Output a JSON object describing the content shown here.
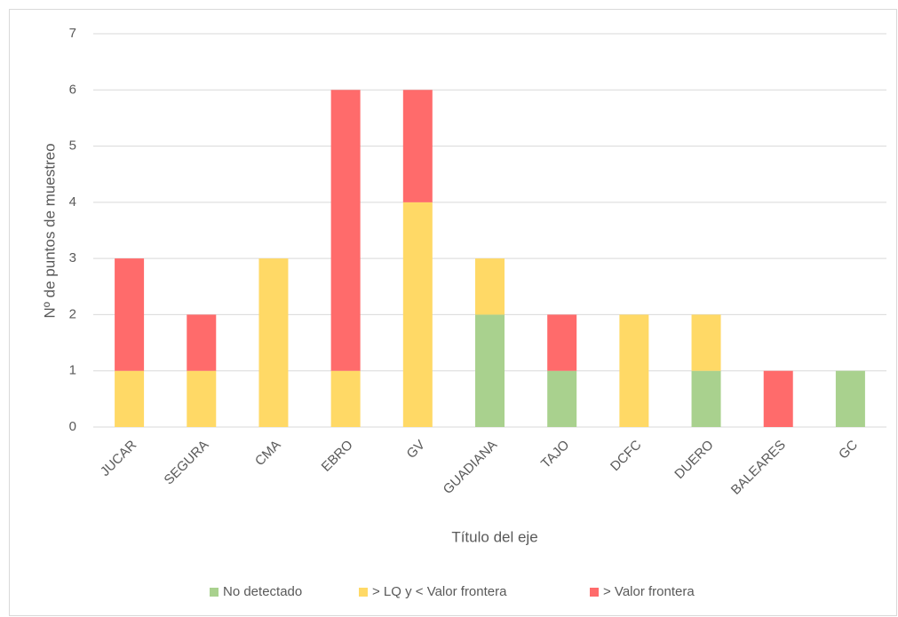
{
  "chart_data": {
    "type": "stacked_bar",
    "categories": [
      "JUCAR",
      "SEGURA",
      "CMA",
      "EBRO",
      "GV",
      "GUADIANA",
      "TAJO",
      "DCFC",
      "DUERO",
      "BALEARES",
      "GC"
    ],
    "series": [
      {
        "name": "No detectado",
        "color": "#a9d18e",
        "values": [
          0,
          0,
          0,
          0,
          0,
          2,
          1,
          0,
          1,
          0,
          1
        ]
      },
      {
        "name": "> LQ y < Valor frontera",
        "color": "#ffd966",
        "values": [
          1,
          1,
          3,
          1,
          4,
          1,
          0,
          2,
          1,
          0,
          0
        ]
      },
      {
        "name": "> Valor frontera",
        "color": "#ff6b6b",
        "values": [
          2,
          1,
          0,
          5,
          2,
          0,
          1,
          0,
          0,
          1,
          0
        ]
      }
    ],
    "xlabel": "Título del eje",
    "ylabel": "Nº de puntos de muestreo",
    "ylim": [
      0,
      7
    ],
    "yticks": [
      0,
      1,
      2,
      3,
      4,
      5,
      6,
      7
    ],
    "grid": true,
    "legend": "bottom"
  }
}
